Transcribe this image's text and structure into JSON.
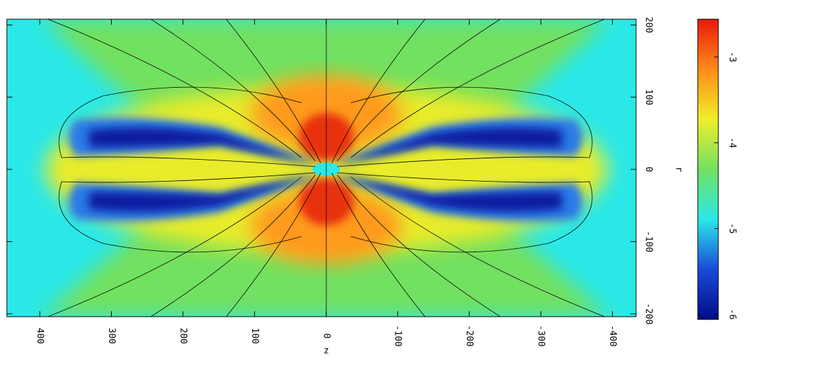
{
  "chart_data": {
    "type": "heatmap",
    "xlabel": "z",
    "ylabel": "r",
    "xlim": [
      446,
      -433
    ],
    "xticks": [
      400,
      300,
      200,
      100,
      0,
      -100,
      -200,
      -300,
      -400
    ],
    "ylim": [
      208,
      -204
    ],
    "yticks": [
      200,
      100,
      0,
      -100,
      -200
    ],
    "colorbar": {
      "lim": [
        -2.56,
        -6.06
      ],
      "ticks": [
        -3,
        -4,
        -5,
        -6
      ],
      "colors": [
        "#e81a0a",
        "#ff8a1a",
        "#f0ee2a",
        "#72e060",
        "#2ae8e8",
        "#1a4ad8",
        "#000c88"
      ]
    }
  }
}
